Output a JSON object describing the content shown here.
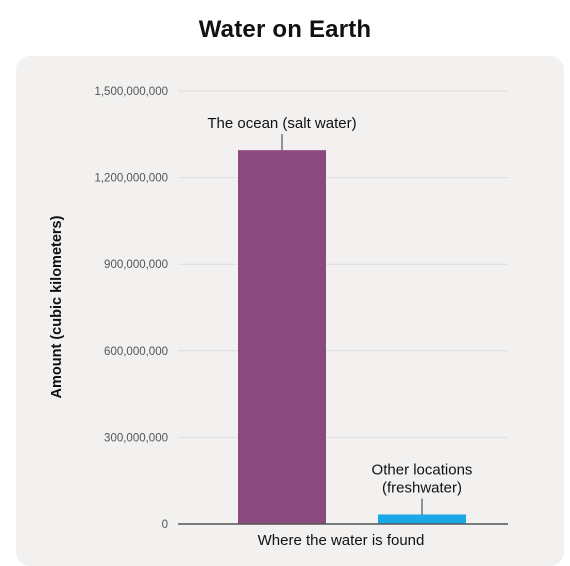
{
  "title": "Water on Earth",
  "colors": {
    "panel": "#f2f1f0",
    "grid": "#dddddd",
    "axis": "#555555",
    "text": "#111111",
    "tick_text": "#555555"
  },
  "chart_data": {
    "type": "bar",
    "title": "Water on Earth",
    "xlabel": "Where the water is found",
    "ylabel": "Amount (cubic kilometers)",
    "ylim": [
      0,
      1500000000
    ],
    "yticks": [
      0,
      300000000,
      600000000,
      900000000,
      1200000000,
      1500000000
    ],
    "ytick_labels": [
      "0",
      "300,000,000",
      "600,000,000",
      "900,000,000",
      "1,200,000,000",
      "1,500,000,000"
    ],
    "grid": true,
    "bars": [
      {
        "label_lines": [
          "The ocean (salt water)"
        ],
        "value": 1295000000,
        "color": "#8a4a80"
      },
      {
        "label_lines": [
          "Other locations",
          "(freshwater)"
        ],
        "value": 33000000,
        "color": "#1aa9e8"
      }
    ]
  }
}
